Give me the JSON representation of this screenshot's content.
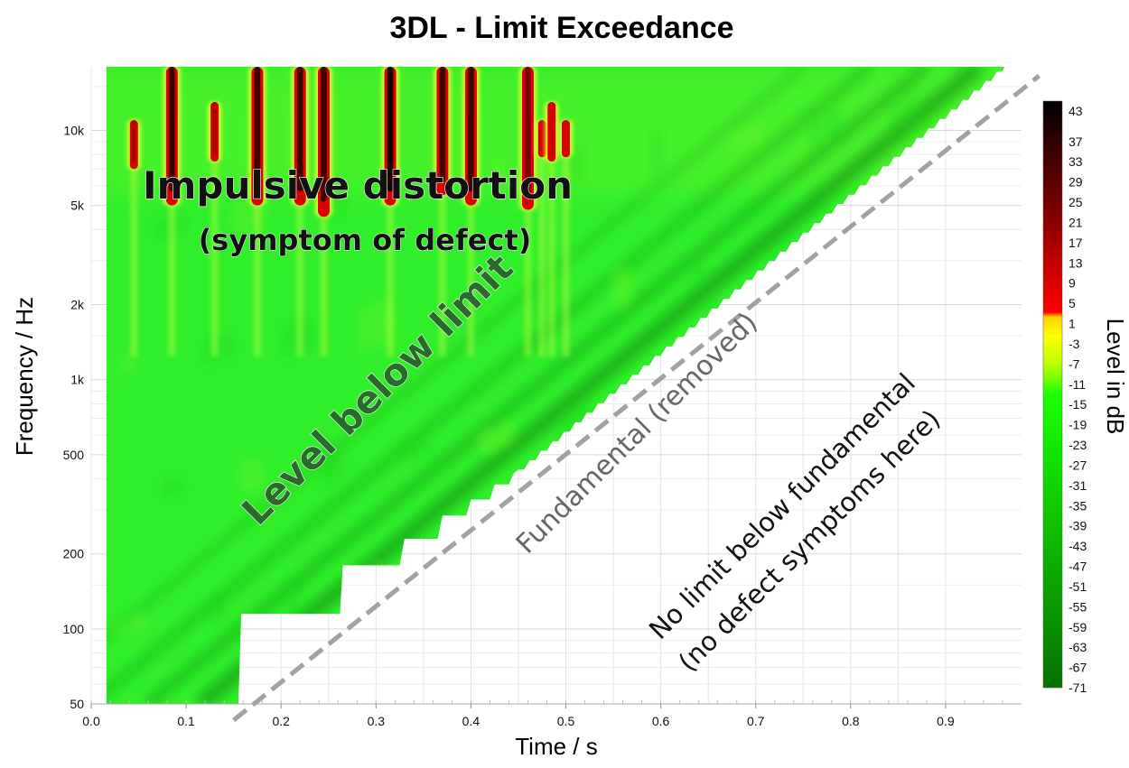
{
  "chart_data": {
    "type": "heatmap",
    "title": "3DL - Limit Exceedance",
    "xlabel": "Time / s",
    "ylabel": "Frequency / Hz",
    "colorbar_label": "Level in dB",
    "x_ticks": [
      "0.0",
      "0.1",
      "0.2",
      "0.3",
      "0.4",
      "0.5",
      "0.6",
      "0.7",
      "0.8",
      "0.9"
    ],
    "x_tick_values": [
      0,
      0.1,
      0.2,
      0.3,
      0.4,
      0.5,
      0.6,
      0.7,
      0.8,
      0.9
    ],
    "xlim": [
      0,
      0.98
    ],
    "y_scale": "log",
    "ylim": [
      50,
      18000
    ],
    "y_ticks": [
      "50",
      "100",
      "200",
      "500",
      "1k",
      "2k",
      "5k",
      "10k"
    ],
    "y_tick_values": [
      50,
      100,
      200,
      500,
      1000,
      2000,
      5000,
      10000
    ],
    "colorbar_ticks": [
      "43",
      "37",
      "33",
      "29",
      "25",
      "21",
      "17",
      "13",
      "9",
      "5",
      "1",
      "-3",
      "-7",
      "-11",
      "-15",
      "-19",
      "-23",
      "-27",
      "-31",
      "-35",
      "-39",
      "-43",
      "-47",
      "-51",
      "-55",
      "-59",
      "-63",
      "-67",
      "-71"
    ],
    "colorbar_range": [
      -71,
      45
    ],
    "colors": {
      "green_light": "#2ef02a",
      "green_dark": "#0a7a0a",
      "yellow": "#e8ff30",
      "red": "#cc0000",
      "black": "#1a0000",
      "fundamental_line": "#999999"
    },
    "sweep_fundamental": [
      {
        "t": 0.15,
        "f": 50
      },
      {
        "t": 0.97,
        "f": 18000
      }
    ],
    "impulsive_events": [
      {
        "t": 0.045,
        "f_low": 7000,
        "f_high": 11000,
        "level": 20
      },
      {
        "t": 0.085,
        "f_low": 5000,
        "f_high": 18000,
        "level": 35
      },
      {
        "t": 0.13,
        "f_low": 7500,
        "f_high": 13000,
        "level": 20
      },
      {
        "t": 0.175,
        "f_low": 5000,
        "f_high": 18000,
        "level": 35
      },
      {
        "t": 0.22,
        "f_low": 5000,
        "f_high": 18000,
        "level": 33
      },
      {
        "t": 0.245,
        "f_low": 4500,
        "f_high": 18000,
        "level": 37
      },
      {
        "t": 0.315,
        "f_low": 5000,
        "f_high": 18000,
        "level": 43
      },
      {
        "t": 0.37,
        "f_low": 5500,
        "f_high": 18000,
        "level": 37
      },
      {
        "t": 0.4,
        "f_low": 5000,
        "f_high": 18000,
        "level": 35
      },
      {
        "t": 0.46,
        "f_low": 4800,
        "f_high": 18000,
        "level": 30
      },
      {
        "t": 0.475,
        "f_low": 7800,
        "f_high": 11000,
        "level": 15
      },
      {
        "t": 0.485,
        "f_low": 7500,
        "f_high": 13000,
        "level": 15
      },
      {
        "t": 0.5,
        "f_low": 7800,
        "f_high": 11000,
        "level": 13
      }
    ],
    "annotations": [
      "Impulsive distortion",
      "(symptom of defect)",
      "Level below limit",
      "Fundamental (removed)",
      "No limit below fundamental",
      "(no defect symptoms here)"
    ]
  }
}
